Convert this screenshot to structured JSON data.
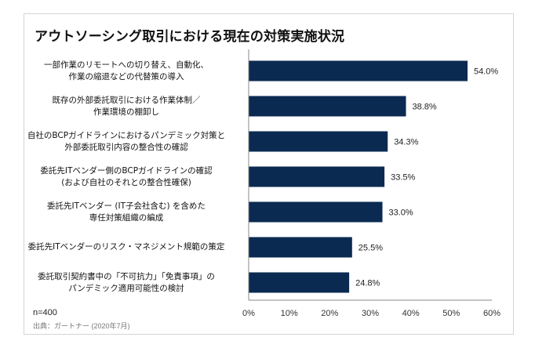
{
  "chart_data": {
    "type": "bar",
    "orientation": "horizontal",
    "title": "アウトソーシング取引における現在の対策実施状況",
    "categories": [
      [
        "一部作業のリモートへの切り替え、自動化、",
        "作業の縮退などの代替策の導入"
      ],
      [
        "既存の外部委託取引における作業体制／",
        "作業環境の棚卸し"
      ],
      [
        "自社のBCPガイドラインにおけるパンデミック対策と",
        "外部委託取引内容の整合性の確認"
      ],
      [
        "委託先ITベンダー側のBCPガイドラインの確認",
        "(および自社のそれとの整合性確保)"
      ],
      [
        "委託先ITベンダー (IT子会社含む) を含めた",
        "専任対策組織の編成"
      ],
      [
        "委託先ITベンダーのリスク・マネジメント規範の策定"
      ],
      [
        "委託取引契約書中の「不可抗力」「免責事項」の",
        "パンデミック適用可能性の検討"
      ]
    ],
    "values": [
      54.0,
      38.8,
      34.3,
      33.5,
      33.0,
      25.5,
      24.8
    ],
    "value_labels": [
      "54.0%",
      "38.8%",
      "34.3%",
      "33.5%",
      "33.0%",
      "25.5%",
      "24.8%"
    ],
    "xlim": [
      0,
      60
    ],
    "xticks": [
      0,
      10,
      20,
      30,
      40,
      50,
      60
    ],
    "xtick_labels": [
      "0%",
      "10%",
      "20%",
      "30%",
      "40%",
      "50%",
      "60%"
    ],
    "xlabel": "",
    "ylabel": "",
    "grid": false,
    "bar_color": "#0b2a52",
    "sample_note": "n=400",
    "source_note": "出典：ガートナー (2020年7月)"
  }
}
